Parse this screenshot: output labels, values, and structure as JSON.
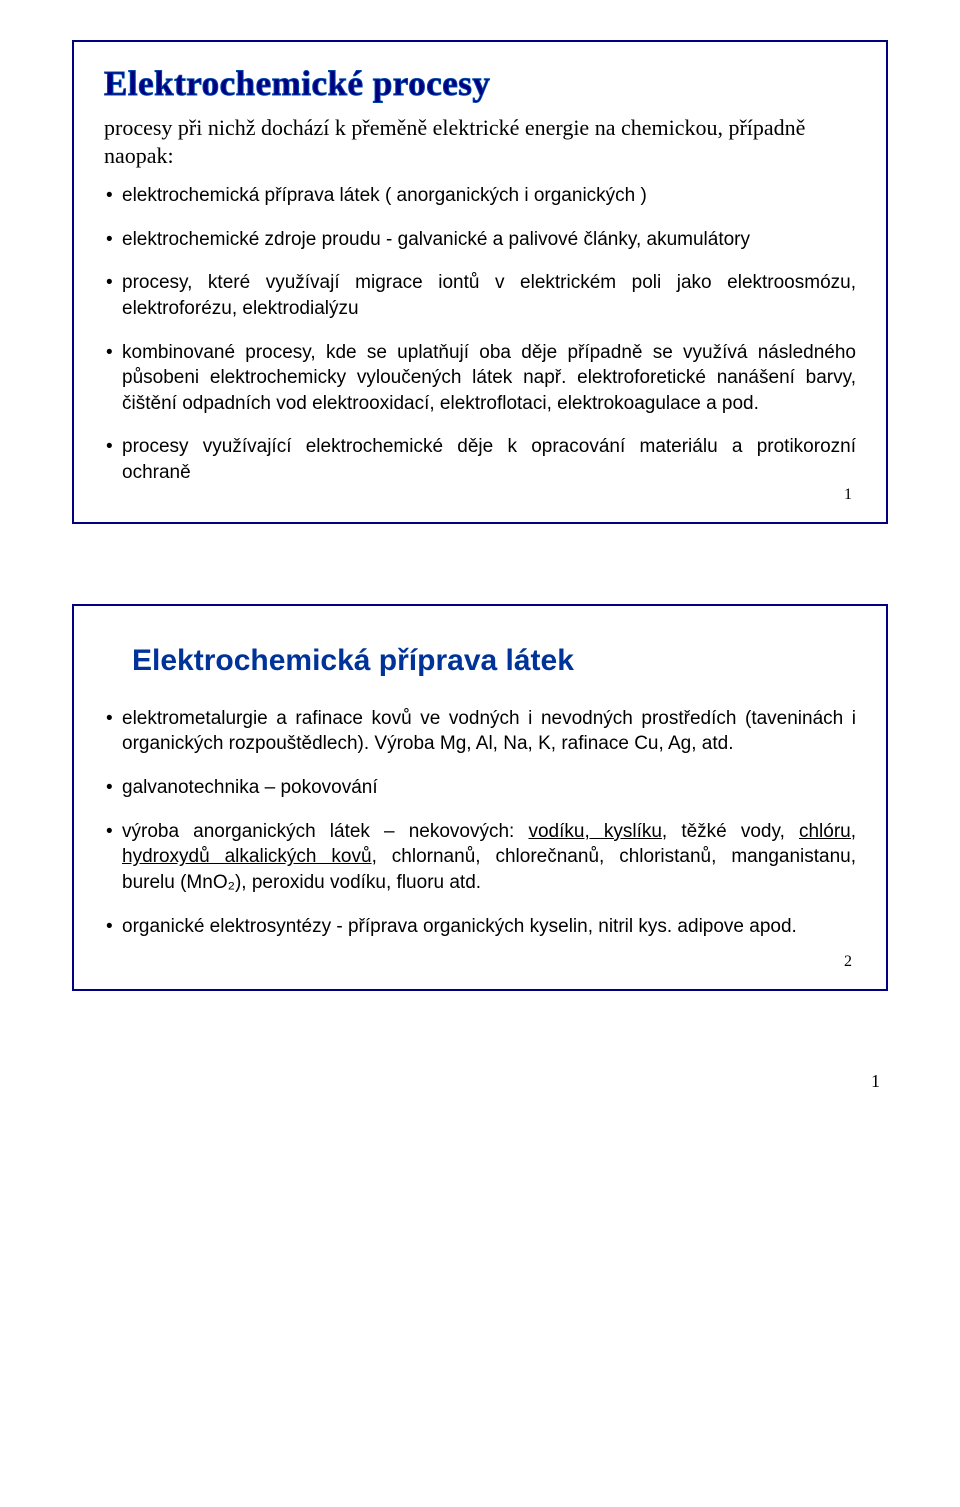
{
  "slide1": {
    "title": "Elektrochemické procesy",
    "subtitle": "procesy při nichž dochází k přeměně elektrické energie na chemickou, případně naopak:",
    "items": [
      "elektrochemická příprava látek ( anorganických i organických )",
      "elektrochemické zdroje proudu - galvanické a palivové články, akumulátory",
      "procesy, které využívají migrace iontů v elektrickém poli jako elektroosmózu, elektroforézu, elektrodialýzu",
      "kombinované procesy, kde se uplatňují oba děje případně se využívá následného působeni elektrochemicky vyloučených látek např. elektroforetické nanášení barvy, čištění odpadních vod elektrooxidací, elektroflotaci, elektrokoagulace a pod.",
      "procesy využívající elektrochemické děje k opracování materiálu  a protikorozní ochraně"
    ],
    "slide_number": "1"
  },
  "slide2": {
    "title": "Elektrochemická příprava látek",
    "items": [
      {
        "pre": "elektrometalurgie a rafinace kovů ve vodných i nevodných prostředích (taveninách i organických rozpouštědlech). Výroba Mg, Al, Na, K, rafinace Cu, Ag, atd."
      },
      {
        "pre": "galvanotechnika – pokovování"
      },
      {
        "pre": "výroba anorganických látek – nekovových: ",
        "u1": "vodíku, kyslíku",
        "mid1": ", těžké vody, ",
        "u2": "chlóru, hydroxydů alkalických kovů",
        "post": ", chlornanů, chlorečnanů, chloristanů, manganistanu, burelu (MnO₂), peroxidu vodíku, fluoru atd."
      },
      {
        "pre": "organické elektrosyntézy - příprava organických kyselin, nitril kys. adipove apod."
      }
    ],
    "slide_number": "2"
  },
  "page_number": "1",
  "colors": {
    "slide_border": "#000080",
    "title_outline": "#000080",
    "title_blue": "#003399",
    "text": "#000000",
    "background": "#ffffff"
  },
  "typography": {
    "title_outline_fontsize_pt": 26,
    "title_blue_fontsize_pt": 22,
    "subtitle_fontsize_pt": 17,
    "body_fontsize_pt": 14,
    "slidenum_fontsize_pt": 12,
    "pagenum_fontsize_pt": 14
  }
}
